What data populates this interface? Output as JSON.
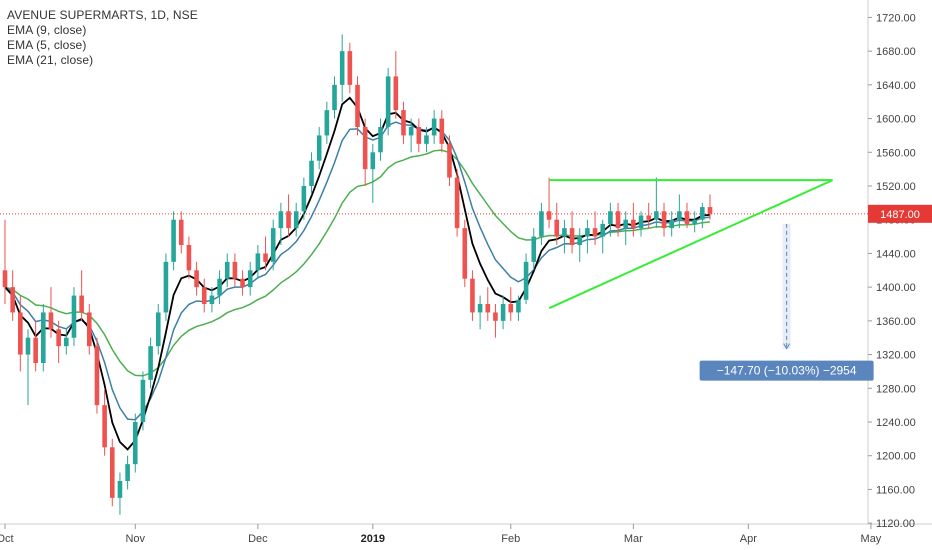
{
  "legend": {
    "title": "AVENUE SUPERMARTS, 1D, NSE",
    "ema1": "EMA (9, close)",
    "ema2": "EMA (5, close)",
    "ema3": "EMA (21, close)"
  },
  "colors": {
    "up": "#26a69a",
    "down": "#ef5350",
    "ema5": "#000000",
    "ema9": "#3f7fa6",
    "ema21": "#4caf50",
    "trendline": "#33ee33",
    "measure": "#5b85bd",
    "price_line": "#e53935"
  },
  "chart_data": {
    "type": "candlestick",
    "ylim": [
      1100,
      1730
    ],
    "y_ticks": [
      "1720.00",
      "1680.00",
      "1640.00",
      "1600.00",
      "1560.00",
      "1520.00",
      "1480.00",
      "1440.00",
      "1400.00",
      "1360.00",
      "1320.00",
      "1280.00",
      "1240.00",
      "1200.00",
      "1160.00",
      "1120.00"
    ],
    "x_ticks": [
      {
        "label": "Oct",
        "bold": false
      },
      {
        "label": "Nov",
        "bold": false
      },
      {
        "label": "Dec",
        "bold": false
      },
      {
        "label": "2019",
        "bold": true
      },
      {
        "label": "Feb",
        "bold": false
      },
      {
        "label": "Mar",
        "bold": false
      },
      {
        "label": "Apr",
        "bold": false
      },
      {
        "label": "May",
        "bold": false
      }
    ],
    "last_price": "1487.00",
    "last_price_value": 1487,
    "candles": [
      [
        1420,
        1480,
        1380,
        1400
      ],
      [
        1400,
        1420,
        1360,
        1370
      ],
      [
        1370,
        1390,
        1300,
        1320
      ],
      [
        1320,
        1350,
        1260,
        1340
      ],
      [
        1340,
        1360,
        1300,
        1310
      ],
      [
        1310,
        1380,
        1300,
        1370
      ],
      [
        1370,
        1400,
        1340,
        1350
      ],
      [
        1350,
        1360,
        1310,
        1330
      ],
      [
        1330,
        1350,
        1320,
        1340
      ],
      [
        1340,
        1400,
        1330,
        1390
      ],
      [
        1390,
        1420,
        1360,
        1370
      ],
      [
        1370,
        1380,
        1320,
        1330
      ],
      [
        1330,
        1340,
        1250,
        1260
      ],
      [
        1260,
        1280,
        1200,
        1210
      ],
      [
        1210,
        1220,
        1140,
        1150
      ],
      [
        1150,
        1180,
        1130,
        1170
      ],
      [
        1170,
        1200,
        1160,
        1190
      ],
      [
        1190,
        1250,
        1180,
        1240
      ],
      [
        1240,
        1300,
        1230,
        1290
      ],
      [
        1290,
        1340,
        1280,
        1330
      ],
      [
        1330,
        1380,
        1320,
        1370
      ],
      [
        1370,
        1440,
        1360,
        1430
      ],
      [
        1430,
        1490,
        1420,
        1480
      ],
      [
        1480,
        1490,
        1440,
        1450
      ],
      [
        1450,
        1460,
        1410,
        1420
      ],
      [
        1420,
        1430,
        1390,
        1400
      ],
      [
        1400,
        1410,
        1370,
        1380
      ],
      [
        1380,
        1400,
        1370,
        1390
      ],
      [
        1390,
        1420,
        1380,
        1410
      ],
      [
        1410,
        1440,
        1400,
        1430
      ],
      [
        1430,
        1440,
        1400,
        1410
      ],
      [
        1410,
        1420,
        1390,
        1400
      ],
      [
        1400,
        1430,
        1390,
        1420
      ],
      [
        1420,
        1450,
        1410,
        1440
      ],
      [
        1440,
        1460,
        1420,
        1430
      ],
      [
        1430,
        1480,
        1420,
        1470
      ],
      [
        1470,
        1500,
        1450,
        1490
      ],
      [
        1490,
        1510,
        1460,
        1470
      ],
      [
        1470,
        1500,
        1460,
        1490
      ],
      [
        1490,
        1530,
        1480,
        1520
      ],
      [
        1520,
        1560,
        1510,
        1550
      ],
      [
        1550,
        1590,
        1540,
        1580
      ],
      [
        1580,
        1620,
        1570,
        1610
      ],
      [
        1610,
        1650,
        1600,
        1640
      ],
      [
        1640,
        1700,
        1620,
        1680
      ],
      [
        1680,
        1690,
        1630,
        1640
      ],
      [
        1640,
        1650,
        1580,
        1590
      ],
      [
        1590,
        1600,
        1520,
        1540
      ],
      [
        1540,
        1570,
        1500,
        1560
      ],
      [
        1560,
        1600,
        1550,
        1590
      ],
      [
        1590,
        1660,
        1580,
        1650
      ],
      [
        1650,
        1680,
        1600,
        1610
      ],
      [
        1610,
        1620,
        1570,
        1580
      ],
      [
        1580,
        1600,
        1560,
        1590
      ],
      [
        1590,
        1600,
        1560,
        1570
      ],
      [
        1570,
        1590,
        1560,
        1580
      ],
      [
        1580,
        1610,
        1570,
        1600
      ],
      [
        1600,
        1610,
        1560,
        1570
      ],
      [
        1570,
        1580,
        1520,
        1530
      ],
      [
        1530,
        1540,
        1460,
        1470
      ],
      [
        1470,
        1480,
        1400,
        1410
      ],
      [
        1410,
        1420,
        1360,
        1370
      ],
      [
        1370,
        1390,
        1350,
        1380
      ],
      [
        1380,
        1400,
        1360,
        1370
      ],
      [
        1370,
        1380,
        1340,
        1360
      ],
      [
        1360,
        1390,
        1350,
        1380
      ],
      [
        1380,
        1400,
        1360,
        1370
      ],
      [
        1370,
        1390,
        1360,
        1385
      ],
      [
        1385,
        1440,
        1380,
        1430
      ],
      [
        1430,
        1470,
        1420,
        1460
      ],
      [
        1460,
        1500,
        1450,
        1490
      ],
      [
        1490,
        1530,
        1470,
        1480
      ],
      [
        1480,
        1500,
        1450,
        1460
      ],
      [
        1460,
        1480,
        1440,
        1470
      ],
      [
        1470,
        1490,
        1440,
        1450
      ],
      [
        1450,
        1470,
        1430,
        1460
      ],
      [
        1460,
        1480,
        1440,
        1470
      ],
      [
        1470,
        1490,
        1450,
        1460
      ],
      [
        1460,
        1480,
        1440,
        1475
      ],
      [
        1475,
        1500,
        1460,
        1490
      ],
      [
        1490,
        1500,
        1460,
        1470
      ],
      [
        1470,
        1490,
        1450,
        1480
      ],
      [
        1480,
        1500,
        1460,
        1470
      ],
      [
        1470,
        1490,
        1460,
        1485
      ],
      [
        1485,
        1500,
        1470,
        1480
      ],
      [
        1480,
        1530,
        1470,
        1490
      ],
      [
        1490,
        1500,
        1460,
        1470
      ],
      [
        1470,
        1490,
        1460,
        1480
      ],
      [
        1480,
        1510,
        1470,
        1490
      ],
      [
        1490,
        1500,
        1470,
        1475
      ],
      [
        1475,
        1490,
        1465,
        1480
      ],
      [
        1480,
        1500,
        1470,
        1495
      ],
      [
        1495,
        1510,
        1480,
        1487
      ]
    ],
    "triangle": {
      "top_line": {
        "x1_index": 71,
        "x2_index": 108,
        "y": 1527
      },
      "bottom_line": {
        "x1_index": 71,
        "y1": 1375,
        "x2_index": 108,
        "y2": 1527
      }
    },
    "measure": {
      "from_index": 102,
      "from_price": 1475,
      "to_price": 1327,
      "label": "−147.70 (−10.03%) −2954"
    }
  }
}
